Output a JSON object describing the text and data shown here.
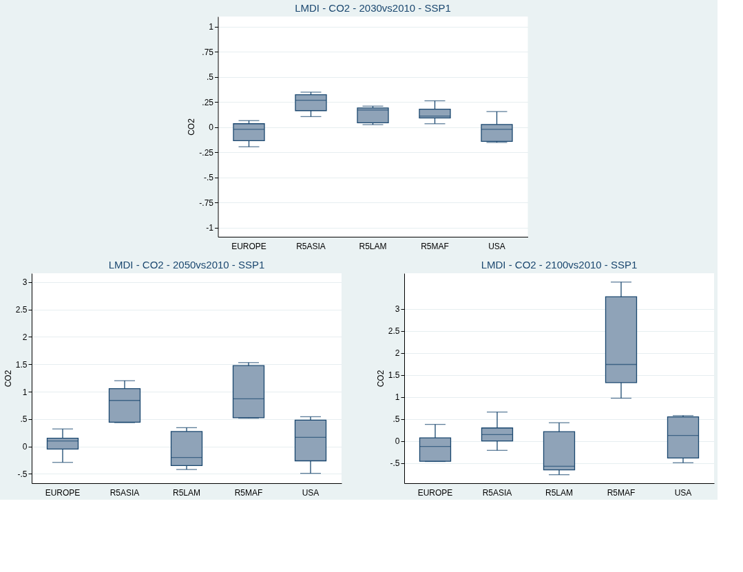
{
  "chart_data": [
    {
      "type": "box",
      "title": "LMDI - CO2 - 2030vs2010 - SSP1",
      "ylabel": "CO2",
      "categories": [
        "EUROPE",
        "R5ASIA",
        "R5LAM",
        "R5MAF",
        "USA"
      ],
      "series": [
        {
          "color": "#8fa3b8",
          "boxes": [
            {
              "low": -0.195,
              "q1": -0.135,
              "median": -0.022,
              "q3": 0.034,
              "high": 0.065
            },
            {
              "low": 0.105,
              "q1": 0.164,
              "median": 0.267,
              "q3": 0.323,
              "high": 0.348
            },
            {
              "low": 0.025,
              "q1": 0.043,
              "median": 0.17,
              "q3": 0.191,
              "high": 0.209
            },
            {
              "low": 0.034,
              "q1": 0.092,
              "median": 0.11,
              "q3": 0.179,
              "high": 0.262
            },
            {
              "low": -0.152,
              "q1": -0.141,
              "median": -0.022,
              "q3": 0.027,
              "high": 0.155
            }
          ]
        }
      ],
      "ylim": [
        -1.09,
        1.1
      ],
      "yticks": [
        {
          "value": -1,
          "label": "-1"
        },
        {
          "value": -0.75,
          "label": "-.75"
        },
        {
          "value": -0.5,
          "label": "-.5"
        },
        {
          "value": -0.25,
          "label": "-.25"
        },
        0,
        {
          "value": 0.25,
          "label": ".25"
        },
        {
          "value": 0.5,
          "label": ".5"
        },
        {
          "value": 0.75,
          "label": ".75"
        },
        1
      ],
      "grid": "y"
    },
    {
      "type": "box",
      "title": "LMDI - CO2 - 2050vs2010 - SSP1",
      "ylabel": "CO2",
      "categories": [
        "EUROPE",
        "R5ASIA",
        "R5LAM",
        "R5MAF",
        "USA"
      ],
      "series": [
        {
          "color": "#8fa3b8",
          "boxes": [
            {
              "low": -0.29,
              "q1": -0.046,
              "median": 0.1,
              "q3": 0.15,
              "high": 0.32
            },
            {
              "low": 0.435,
              "q1": 0.443,
              "median": 0.84,
              "q3": 1.055,
              "high": 1.2
            },
            {
              "low": -0.42,
              "q1": -0.347,
              "median": -0.2,
              "q3": 0.273,
              "high": 0.343
            },
            {
              "low": 0.516,
              "q1": 0.524,
              "median": 0.87,
              "q3": 1.475,
              "high": 1.53
            },
            {
              "low": -0.49,
              "q1": -0.262,
              "median": 0.166,
              "q3": 0.48,
              "high": 0.543
            }
          ]
        }
      ],
      "ylim": [
        -0.67,
        3.16
      ],
      "yticks": [
        {
          "value": -0.5,
          "label": "-.5"
        },
        0,
        {
          "value": 0.5,
          "label": ".5"
        },
        1,
        1.5,
        2,
        2.5,
        3
      ],
      "grid": "y"
    },
    {
      "type": "box",
      "title": "LMDI - CO2 - 2100vs2010 - SSP1",
      "ylabel": "CO2",
      "categories": [
        "EUROPE",
        "R5ASIA",
        "R5LAM",
        "R5MAF",
        "USA"
      ],
      "series": [
        {
          "color": "#8fa3b8",
          "boxes": [
            {
              "low": -0.467,
              "q1": -0.462,
              "median": -0.124,
              "q3": 0.071,
              "high": 0.376
            },
            {
              "low": -0.214,
              "q1": 0.0,
              "median": 0.143,
              "q3": 0.295,
              "high": 0.657
            },
            {
              "low": -0.767,
              "q1": -0.657,
              "median": -0.576,
              "q3": 0.21,
              "high": 0.414
            },
            {
              "low": 0.971,
              "q1": 1.324,
              "median": 1.738,
              "q3": 3.276,
              "high": 3.61
            },
            {
              "low": -0.495,
              "q1": -0.386,
              "median": 0.124,
              "q3": 0.548,
              "high": 0.576
            }
          ]
        }
      ],
      "ylim": [
        -0.96,
        3.81
      ],
      "yticks": [
        {
          "value": -0.5,
          "label": "-.5"
        },
        0,
        {
          "value": 0.5,
          "label": ".5"
        },
        1,
        1.5,
        2,
        2.5,
        3
      ],
      "grid": "y"
    }
  ]
}
